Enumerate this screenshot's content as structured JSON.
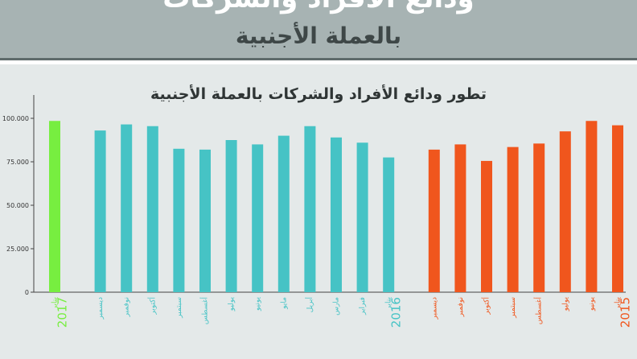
{
  "header": {
    "line1": "ودائع الأفراد والشركات",
    "line2": "بالعملة الأجنبية"
  },
  "colors": {
    "banner": "#a7b3b3",
    "panel": "#e4e9e9",
    "orange": "#f0561d",
    "teal": "#46c3c5",
    "green": "#77ee40"
  },
  "chart_data": {
    "type": "bar",
    "title": "تطور ودائع الأفراد والشركات بالعملة الأجنبية",
    "ylim": [
      0,
      100000
    ],
    "yticks": [
      "0",
      "25.000",
      "50.000",
      "75.000",
      "100.000"
    ],
    "grid": false,
    "groups": [
      {
        "year": "2015",
        "color": "#f0561d",
        "categories": [
          "يناير",
          "يونيو",
          "يوليو",
          "أغسطس",
          "سبتمبر",
          "أكتوبر",
          "نوفمبر",
          "ديسمبر"
        ],
        "values": [
          96000,
          98500,
          92500,
          85500,
          83500,
          75500,
          85000,
          82000
        ]
      },
      {
        "year": "2016",
        "color": "#46c3c5",
        "categories": [
          "يناير",
          "فبراير",
          "مارس",
          "أبريل",
          "مايو",
          "يونيو",
          "يوليو",
          "أغسطس",
          "سبتمبر",
          "أكتوبر",
          "نوفمبر",
          "ديسمبر"
        ],
        "values": [
          77500,
          86000,
          89000,
          95500,
          90000,
          85000,
          87500,
          82000,
          82500,
          95500,
          96500,
          93000
        ]
      },
      {
        "year": "2017",
        "color": "#77ee40",
        "categories": [
          "يناير"
        ],
        "values": [
          98500
        ]
      }
    ]
  }
}
